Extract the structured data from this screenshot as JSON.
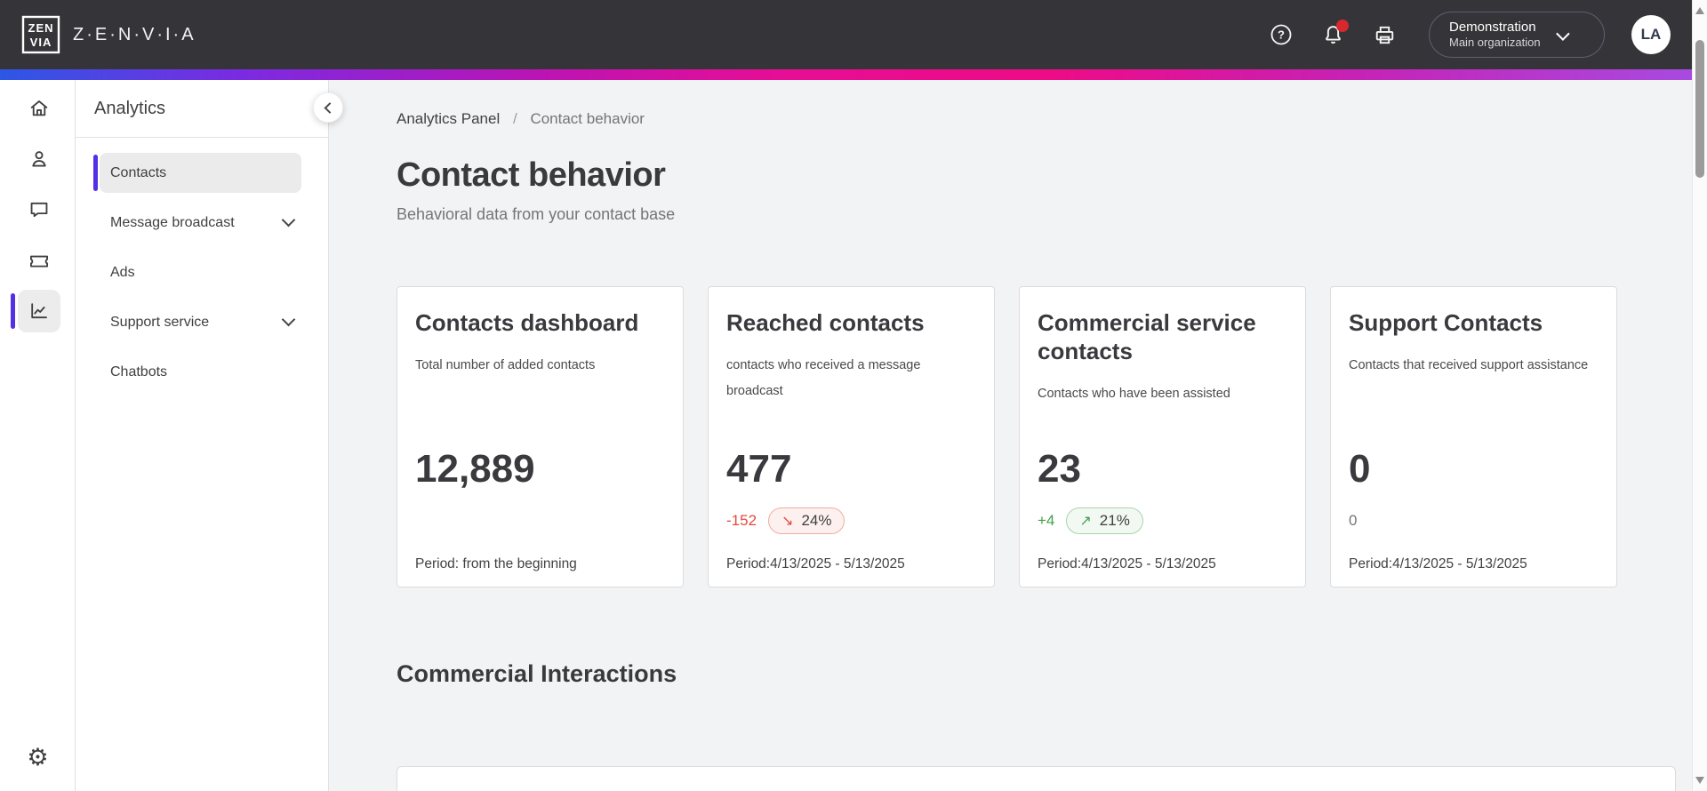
{
  "header": {
    "brand": "Z·E·N·V·I·A",
    "logo_top": "ZEN",
    "logo_bottom": "VIA",
    "icons": [
      "help-icon",
      "notifications-bell-icon",
      "printer-icon"
    ],
    "help_glyph": "?",
    "org": {
      "name": "Demonstration",
      "sub": "Main organization"
    },
    "avatar_initials": "LA"
  },
  "rail": {
    "items": [
      {
        "name": "home",
        "icon": "home-icon",
        "active": false
      },
      {
        "name": "contacts",
        "icon": "person-icon",
        "active": false
      },
      {
        "name": "conversations",
        "icon": "chat-bubble-icon",
        "active": false
      },
      {
        "name": "campaigns",
        "icon": "ticket-icon",
        "active": false
      },
      {
        "name": "analytics",
        "icon": "line-chart-icon",
        "active": true
      },
      {
        "name": "settings",
        "icon": "gear-icon",
        "active": false
      }
    ],
    "gear_glyph": "⚙"
  },
  "sidebar": {
    "title": "Analytics",
    "items": [
      {
        "key": "contacts",
        "label": "Contacts",
        "selected": true,
        "expandable": false
      },
      {
        "key": "message-broadcast",
        "label": "Message broadcast",
        "selected": false,
        "expandable": true
      },
      {
        "key": "ads",
        "label": "Ads",
        "selected": false,
        "expandable": false
      },
      {
        "key": "support-service",
        "label": "Support service",
        "selected": false,
        "expandable": true
      },
      {
        "key": "chatbots",
        "label": "Chatbots",
        "selected": false,
        "expandable": false
      }
    ]
  },
  "breadcrumb": {
    "parent": "Analytics Panel",
    "separator": "/",
    "current": "Contact behavior"
  },
  "page": {
    "title": "Contact behavior",
    "subtitle": "Behavioral data from your contact base"
  },
  "cards": [
    {
      "title": "Contacts dashboard",
      "description": "Total number of added contacts",
      "value": "12,889",
      "delta": null,
      "period": "Period: from the beginning"
    },
    {
      "title": "Reached contacts",
      "description": "contacts who received a message broadcast",
      "value": "477",
      "delta": {
        "text": "-152",
        "trend": "down",
        "badge": {
          "arrow": "↘",
          "text": "24%"
        }
      },
      "period": "Period:4/13/2025 - 5/13/2025"
    },
    {
      "title": "Commercial service contacts",
      "description": "Contacts who have been assisted",
      "value": "23",
      "delta": {
        "text": "+4",
        "trend": "up",
        "badge": {
          "arrow": "↗",
          "text": "21%"
        }
      },
      "period": "Period:4/13/2025 - 5/13/2025"
    },
    {
      "title": "Support Contacts",
      "description": "Contacts that received support assistance",
      "value": "0",
      "delta": {
        "text": "0",
        "trend": "neutral",
        "badge": null
      },
      "period": "Period:4/13/2025 - 5/13/2025"
    }
  ],
  "section": {
    "title": "Commercial Interactions"
  },
  "colors": {
    "accent_purple": "#5230e5",
    "header_bg": "#353539",
    "notification_badge": "#d7282f",
    "trend": {
      "down": "#e5493c",
      "up": "#43a047",
      "neutral": "#757575"
    },
    "gradient": [
      "#2d57e6",
      "#7a2be2",
      "#e60e95",
      "#ee0b86",
      "#a84ae0"
    ]
  }
}
